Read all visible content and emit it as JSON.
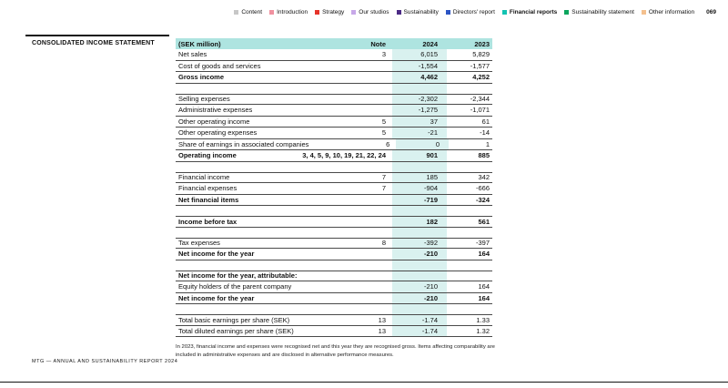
{
  "nav": {
    "items": [
      {
        "label": "Content",
        "color": "#c7c7c7",
        "active": false
      },
      {
        "label": "Introduction",
        "color": "#f0919f",
        "active": false
      },
      {
        "label": "Strategy",
        "color": "#e6332a",
        "active": false
      },
      {
        "label": "Our studios",
        "color": "#c7a8e8",
        "active": false
      },
      {
        "label": "Sustainability",
        "color": "#4b2a85",
        "active": false
      },
      {
        "label": "Directors' report",
        "color": "#2b54c4",
        "active": false
      },
      {
        "label": "Financial reports",
        "color": "#12c3b2",
        "active": true
      },
      {
        "label": "Sustainability statement",
        "color": "#0aa55d",
        "active": false
      },
      {
        "label": "Other information",
        "color": "#f4c08e",
        "active": false
      }
    ],
    "page_number": "069"
  },
  "page_title": "CONSOLIDATED INCOME STATEMENT",
  "colors": {
    "header_bg": "#aee4e0",
    "stripe_bg": "#d9f1ef",
    "accent_teal": "#12c3b2"
  },
  "table": {
    "columns": {
      "label": "(SEK million)",
      "note": "Note",
      "y2024": "2024",
      "y2023": "2023"
    },
    "rows": [
      {
        "label": "Net sales",
        "note": "3",
        "v2024": "6,015",
        "v2023": "5,829",
        "bold": false
      },
      {
        "label": "Cost of goods and services",
        "note": "",
        "v2024": "-1,554",
        "v2023": "-1,577",
        "bold": false
      },
      {
        "label": "Gross income",
        "note": "",
        "v2024": "4,462",
        "v2023": "4,252",
        "bold": true
      },
      {
        "spacer": true
      },
      {
        "label": "Selling expenses",
        "note": "",
        "v2024": "-2,302",
        "v2023": "-2,344",
        "bold": false
      },
      {
        "label": "Administrative expenses",
        "note": "",
        "v2024": "-1,275",
        "v2023": "-1,071",
        "bold": false
      },
      {
        "label": "Other operating income",
        "note": "5",
        "v2024": "37",
        "v2023": "61",
        "bold": false
      },
      {
        "label": "Other operating expenses",
        "note": "5",
        "v2024": "-21",
        "v2023": "-14",
        "bold": false
      },
      {
        "label": "Share of earnings in associated companies",
        "note": "6",
        "v2024": "0",
        "v2023": "1",
        "bold": false
      },
      {
        "label": "Operating income",
        "note": "3, 4, 5, 9, 10, 19, 21, 22, 24",
        "v2024": "901",
        "v2023": "885",
        "bold": true
      },
      {
        "spacer": true
      },
      {
        "label": "Financial income",
        "note": "7",
        "v2024": "185",
        "v2023": "342",
        "bold": false
      },
      {
        "label": "Financial expenses",
        "note": "7",
        "v2024": "-904",
        "v2023": "-666",
        "bold": false
      },
      {
        "label": "Net financial items",
        "note": "",
        "v2024": "-719",
        "v2023": "-324",
        "bold": true
      },
      {
        "spacer": true
      },
      {
        "label": "Income before tax",
        "note": "",
        "v2024": "182",
        "v2023": "561",
        "bold": true
      },
      {
        "spacer": true
      },
      {
        "label": "Tax expenses",
        "note": "8",
        "v2024": "-392",
        "v2023": "-397",
        "bold": false
      },
      {
        "label": "Net income for the year",
        "note": "",
        "v2024": "-210",
        "v2023": "164",
        "bold": true
      },
      {
        "spacer": true
      },
      {
        "label": "Net income for the year, attributable:",
        "note": "",
        "v2024": "",
        "v2023": "",
        "bold": true
      },
      {
        "label": "Equity holders of the parent company",
        "note": "",
        "v2024": "-210",
        "v2023": "164",
        "bold": false
      },
      {
        "label": "Net income for the year",
        "note": "",
        "v2024": "-210",
        "v2023": "164",
        "bold": true
      },
      {
        "spacer": true
      },
      {
        "label": "Total basic earnings per share (SEK)",
        "note": "13",
        "v2024": "-1.74",
        "v2023": "1.33",
        "bold": false
      },
      {
        "label": "Total diluted earnings per share (SEK)",
        "note": "13",
        "v2024": "-1.74",
        "v2023": "1.32",
        "bold": false
      }
    ]
  },
  "footnote": "In 2023, financial income and expenses were recognised net and this year they are recognised gross. Items affecting comparability are included in administrative expenses and are disclosed in alternative performance measures.",
  "footer": "MTG — ANNUAL AND SUSTAINABILITY REPORT 2024"
}
